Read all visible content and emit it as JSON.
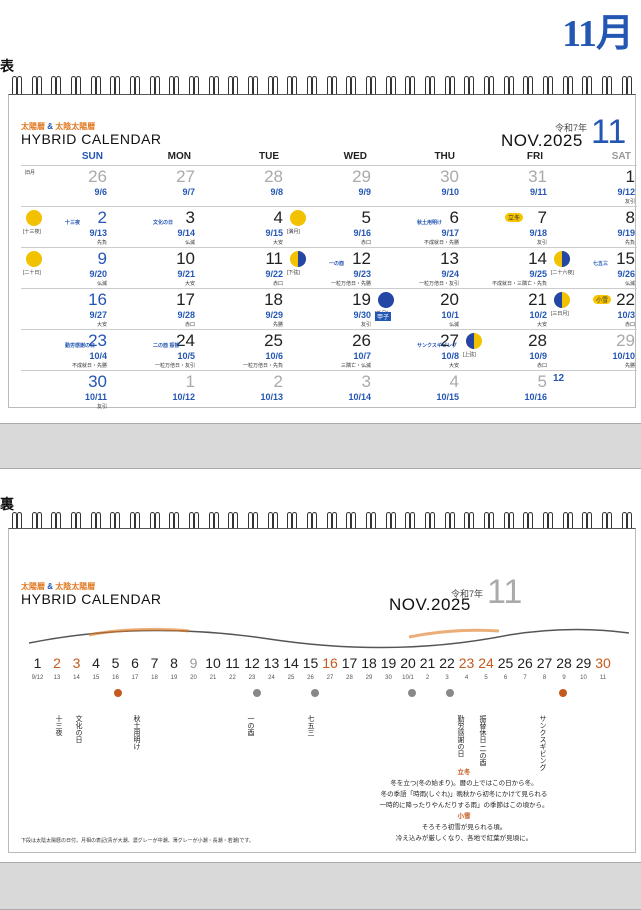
{
  "page": {
    "month_heading": "11月",
    "front_label": "表",
    "back_label": "裏"
  },
  "header": {
    "subtitle_a": "太陽暦",
    "subtitle_amp": "&",
    "subtitle_b": "太陰太陽暦",
    "title": "HYBRID CALENDAR",
    "reiwa": "令和7年",
    "nov": "NOV.2025",
    "num": "11"
  },
  "weekdays": [
    "SUN",
    "MON",
    "TUE",
    "WED",
    "THU",
    "FRI",
    "SAT"
  ],
  "weeks": [
    [
      {
        "d": "26",
        "lu": "9/6",
        "faded": true,
        "tag": "旧月"
      },
      {
        "d": "27",
        "lu": "9/7",
        "faded": true
      },
      {
        "d": "28",
        "lu": "9/8",
        "faded": true
      },
      {
        "d": "29",
        "lu": "9/9",
        "faded": true
      },
      {
        "d": "30",
        "lu": "9/10",
        "faded": true
      },
      {
        "d": "31",
        "lu": "9/11",
        "faded": true
      },
      {
        "d": "1",
        "lu": "9/12",
        "ev": "友引"
      }
    ],
    [
      {
        "d": "2",
        "lu": "9/13",
        "ev": "先負",
        "moon": "full",
        "mname": "[十三夜]",
        "hol": "十三夜"
      },
      {
        "d": "3",
        "lu": "9/14",
        "ev": "仏滅",
        "hol": "文化の日"
      },
      {
        "d": "4",
        "lu": "9/15",
        "ev": "大安"
      },
      {
        "d": "5",
        "lu": "9/16",
        "ev": "赤口",
        "moon": "full",
        "mname": "[満月]"
      },
      {
        "d": "6",
        "lu": "9/17",
        "ev": "不成就日・先勝",
        "hol": "秋土用明け"
      },
      {
        "d": "7",
        "lu": "9/18",
        "ev": "友引",
        "sekki": "立冬"
      },
      {
        "d": "8",
        "lu": "9/19",
        "ev": "先負"
      }
    ],
    [
      {
        "d": "9",
        "lu": "9/20",
        "ev": "仏滅",
        "moon": "full",
        "mname": "[二十日]"
      },
      {
        "d": "10",
        "lu": "9/21",
        "ev": "大安"
      },
      {
        "d": "11",
        "lu": "9/22",
        "ev": "赤口"
      },
      {
        "d": "12",
        "lu": "9/23",
        "ev": "一粒万倍日・先勝",
        "moon": "last",
        "mname": "[下弦]",
        "hol": "一の酉"
      },
      {
        "d": "13",
        "lu": "9/24",
        "ev": "一粒万倍日・友引"
      },
      {
        "d": "14",
        "lu": "9/25",
        "ev": "不成就日・三隣亡・先負"
      },
      {
        "d": "15",
        "lu": "9/26",
        "ev": "仏滅",
        "moon": "last",
        "mname": "[二十六夜]",
        "hol": "七五三"
      }
    ],
    [
      {
        "d": "16",
        "lu": "9/27",
        "ev": "大安"
      },
      {
        "d": "17",
        "lu": "9/28",
        "ev": "赤口"
      },
      {
        "d": "18",
        "lu": "9/29",
        "ev": "先勝"
      },
      {
        "d": "19",
        "lu": "9/30",
        "ev": "友引"
      },
      {
        "d": "20",
        "lu": "10/1",
        "ev": "仏滅",
        "moon": "new",
        "mname": "[新月]",
        "badge": "甲子"
      },
      {
        "d": "21",
        "lu": "10/2",
        "ev": "大安"
      },
      {
        "d": "22",
        "lu": "10/3",
        "ev": "赤口",
        "moon": "first",
        "mname": "[三日月]",
        "sekki": "小雪"
      }
    ],
    [
      {
        "d": "23",
        "lu": "10/4",
        "ev": "不成就日・先勝",
        "hol": "勤労感謝の日"
      },
      {
        "d": "24",
        "lu": "10/5",
        "ev": "一粒万倍日・友引",
        "hol": "二の酉 振替"
      },
      {
        "d": "25",
        "lu": "10/6",
        "ev": "一粒万倍日・先負"
      },
      {
        "d": "26",
        "lu": "10/7",
        "ev": "三隣亡・仏滅"
      },
      {
        "d": "27",
        "lu": "10/8",
        "ev": "大安",
        "hol": "サンクスギビング"
      },
      {
        "d": "28",
        "lu": "10/9",
        "ev": "赤口",
        "moon": "first",
        "mname": "[上弦]"
      },
      {
        "d": "29",
        "lu": "10/10",
        "ev": "先勝",
        "faded": true
      }
    ],
    [
      {
        "d": "30",
        "lu": "10/11",
        "ev": "友引"
      },
      {
        "d": "1",
        "lu": "10/12",
        "faded": true
      },
      {
        "d": "2",
        "lu": "10/13",
        "faded": true
      },
      {
        "d": "3",
        "lu": "10/14",
        "faded": true
      },
      {
        "d": "4",
        "lu": "10/15",
        "faded": true
      },
      {
        "d": "5",
        "lu": "10/16",
        "faded": true
      },
      {
        "d": "",
        "lu": "",
        "mini": "12"
      }
    ]
  ],
  "back": {
    "days": [
      "1",
      "2",
      "3",
      "4",
      "5",
      "6",
      "7",
      "8",
      "9",
      "10",
      "11",
      "12",
      "13",
      "14",
      "15",
      "16",
      "17",
      "18",
      "19",
      "20",
      "21",
      "22",
      "23",
      "24",
      "25",
      "26",
      "27",
      "28",
      "29",
      "30"
    ],
    "lunar": [
      "9/12",
      "13",
      "14",
      "15",
      "16",
      "17",
      "18",
      "19",
      "20",
      "21",
      "22",
      "23",
      "24",
      "25",
      "26",
      "27",
      "28",
      "29",
      "30",
      "10/1",
      "2",
      "3",
      "4",
      "5",
      "6",
      "7",
      "8",
      "9",
      "10",
      "11"
    ],
    "events": {
      "e2": "十三夜",
      "e3": "文化の日",
      "e6": "秋土用明け",
      "e12": "一の酉",
      "e15": "七五三",
      "e23": "勤労感謝の日",
      "e24": "振替休日 二の酉",
      "e27": "サンクスギビング"
    },
    "note_1a": "立冬",
    "note_1b": "冬を立つ(冬の始まり)。暦の上ではこの日から冬。",
    "note_1c": "冬の季語「時雨(しぐれ)」晩秋から初冬にかけて見られる",
    "note_1d": "一時的に降ったりやんだりする雨」の季節はこの頃から。",
    "note_2a": "小雪",
    "note_2b": "そろそろ初雪が見られる頃。",
    "note_2c": "冷え込みが厳しくなり、各地で紅葉が見頃に。",
    "footnote": "下段は太陰太陽暦の日付。月相の表記(青が大潮、濃グレーが中潮、薄グレーが小潮・長潮・若潮)です。"
  },
  "colors": {
    "accent": "#2456b4",
    "orange": "#e07820",
    "moon": "#f2c200"
  }
}
